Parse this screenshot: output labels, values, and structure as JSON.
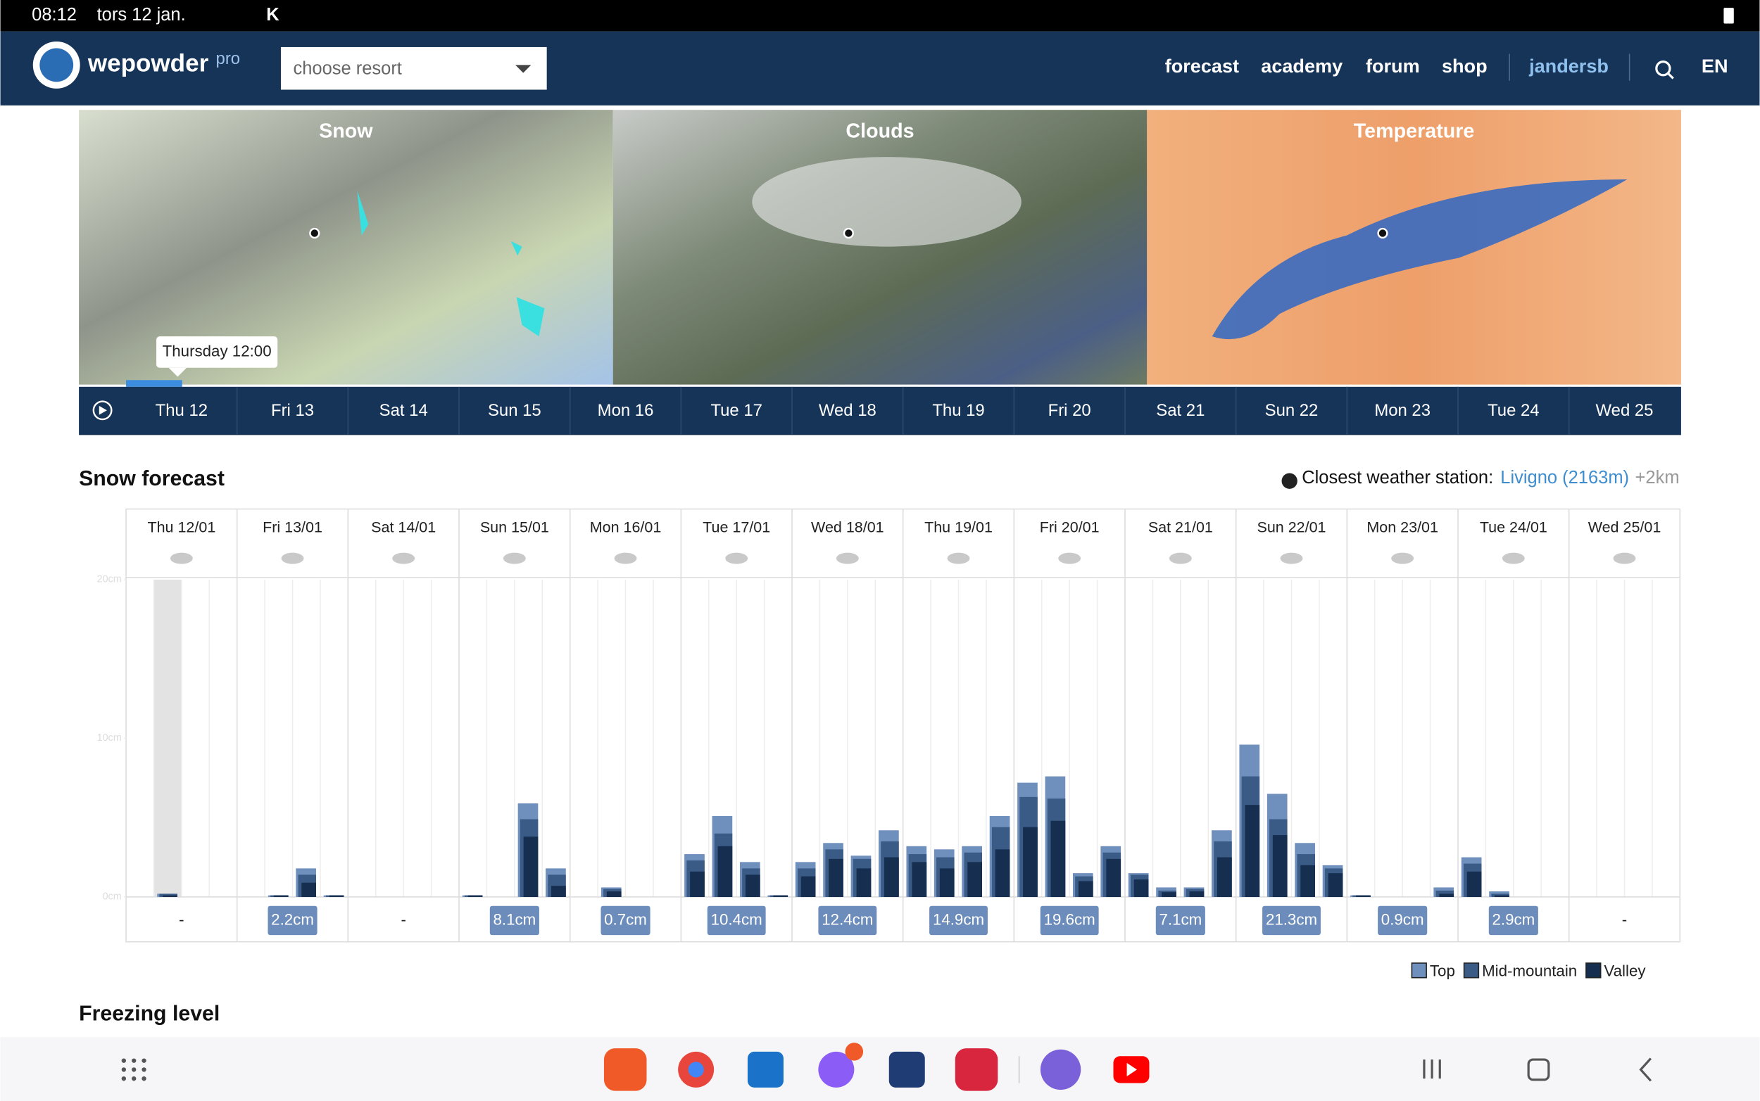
{
  "status_bar": {
    "time": "08:12",
    "date": "tors 12 jan.",
    "extra": "K"
  },
  "nav": {
    "brand": "wepowder",
    "badge": "pro",
    "resort_select": "choose resort",
    "links": [
      "forecast",
      "academy",
      "forum",
      "shop"
    ],
    "user": "jandersb",
    "language": "EN"
  },
  "maps": {
    "panels": [
      "Snow",
      "Clouds",
      "Temperature"
    ],
    "tooltip": "Thursday 12:00",
    "days": [
      "Thu 12",
      "Fri 13",
      "Sat 14",
      "Sun 15",
      "Mon 16",
      "Tue 17",
      "Wed 18",
      "Thu 19",
      "Fri 20",
      "Sat 21",
      "Sun 22",
      "Mon 23",
      "Tue 24",
      "Wed 25"
    ]
  },
  "snow_forecast": {
    "heading": "Snow forecast",
    "station_label": "Closest weather station:",
    "station": "Livigno (2163m)",
    "station_distance": "+2km"
  },
  "chart_data": {
    "type": "bar",
    "categories": [
      "Thu 12/01",
      "Fri 13/01",
      "Sat 14/01",
      "Sun 15/01",
      "Mon 16/01",
      "Tue 17/01",
      "Wed 18/01",
      "Thu 19/01",
      "Fri 20/01",
      "Sat 21/01",
      "Sun 22/01",
      "Mon 23/01",
      "Tue 24/01",
      "Wed 25/01"
    ],
    "ylim": [
      0,
      20
    ],
    "yticks": [
      {
        "value": 0,
        "label": "0cm"
      },
      {
        "value": 10,
        "label": "10cm"
      },
      {
        "value": 20,
        "label": "20cm"
      }
    ],
    "series": [
      {
        "name": "Top",
        "color": "#6f8fbd",
        "values": [
          [
            0,
            0.2,
            0,
            0
          ],
          [
            0,
            0.1,
            1.8,
            0.1
          ],
          [
            0,
            0,
            0,
            0
          ],
          [
            0.1,
            0,
            5.9,
            1.8
          ],
          [
            0,
            0.6,
            0,
            0
          ],
          [
            2.7,
            5.1,
            2.2,
            0.1
          ],
          [
            2.2,
            3.4,
            2.6,
            4.2
          ],
          [
            3.2,
            3.0,
            3.2,
            5.1
          ],
          [
            7.2,
            7.6,
            1.5,
            3.2
          ],
          [
            1.5,
            0.6,
            0.6,
            4.2
          ],
          [
            9.6,
            6.5,
            3.4,
            2.0
          ],
          [
            0.1,
            0,
            0,
            0.6
          ],
          [
            2.5,
            0.35,
            0,
            0
          ],
          [
            0,
            0,
            0,
            0
          ]
        ]
      },
      {
        "name": "Mid-mountain",
        "color": "#3b5b87",
        "values": [
          [
            0,
            0.2,
            0,
            0
          ],
          [
            0,
            0.1,
            1.4,
            0.1
          ],
          [
            0,
            0,
            0,
            0
          ],
          [
            0.1,
            0,
            4.9,
            1.4
          ],
          [
            0,
            0.5,
            0,
            0
          ],
          [
            2.3,
            4.0,
            1.8,
            0.1
          ],
          [
            1.8,
            3.0,
            2.4,
            3.5
          ],
          [
            2.7,
            2.5,
            2.8,
            4.4
          ],
          [
            6.3,
            6.2,
            1.3,
            2.8
          ],
          [
            1.4,
            0.4,
            0.5,
            3.5
          ],
          [
            7.6,
            4.9,
            2.7,
            1.8
          ],
          [
            0.1,
            0,
            0,
            0.4
          ],
          [
            2.1,
            0.2,
            0,
            0
          ],
          [
            0,
            0,
            0,
            0
          ]
        ]
      },
      {
        "name": "Valley",
        "color": "#162f50",
        "values": [
          [
            0,
            0.1,
            0,
            0
          ],
          [
            0,
            0.1,
            0.9,
            0.1
          ],
          [
            0,
            0,
            0,
            0
          ],
          [
            0.1,
            0,
            3.8,
            0.7
          ],
          [
            0,
            0.35,
            0,
            0
          ],
          [
            1.6,
            3.2,
            1.4,
            0.1
          ],
          [
            1.3,
            2.4,
            1.8,
            2.5
          ],
          [
            2.2,
            1.8,
            2.2,
            3.0
          ],
          [
            4.4,
            4.8,
            1.0,
            2.4
          ],
          [
            1.1,
            0.3,
            0.35,
            2.5
          ],
          [
            5.8,
            3.9,
            2.0,
            1.5
          ],
          [
            0.1,
            0,
            0,
            0.2
          ],
          [
            1.6,
            0.1,
            0,
            0
          ],
          [
            0,
            0,
            0,
            0
          ]
        ]
      }
    ],
    "day_totals": [
      "-",
      "2.2cm",
      "-",
      "8.1cm",
      "0.7cm",
      "10.4cm",
      "12.4cm",
      "14.9cm",
      "19.6cm",
      "7.1cm",
      "21.3cm",
      "0.9cm",
      "2.9cm",
      "-"
    ]
  },
  "next_section": "Freezing level"
}
